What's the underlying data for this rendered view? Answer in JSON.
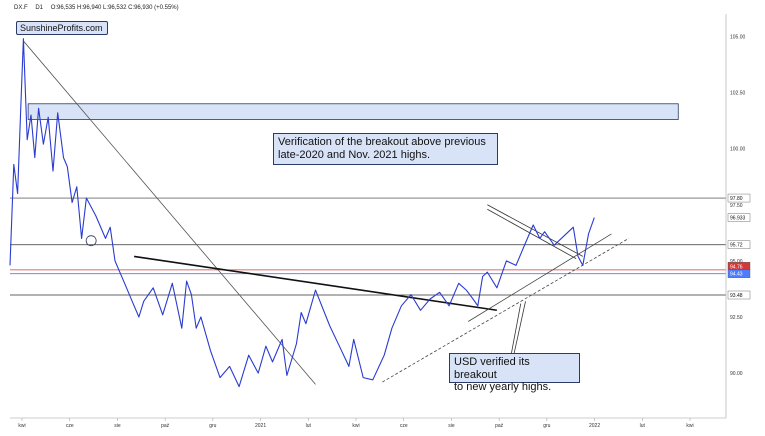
{
  "header": {
    "symbol": "DX.F",
    "timeframe": "D1",
    "ohlc": "O:96,535  H:96,940  L:96,532  C:96,930  (+0.55%)"
  },
  "watermark": "SunshineProfits.com",
  "annotations": {
    "breakout": "Verification of the breakout above previous late-2020 and Nov. 2021 highs.",
    "breakout_line1": "Verification of the breakout above previous",
    "breakout_line2": "late-2020 and Nov. 2021 highs.",
    "usd": "USD verified its breakout to new yearly highs.",
    "usd_line1": "USD verified its breakout",
    "usd_line2": "to new yearly highs."
  },
  "colors": {
    "price": "#2a3cd0",
    "callout_fill": "#d9e3f7",
    "callout_border": "#2b3a66",
    "red_line": "#d23a3a",
    "blue_line": "#4d7cff",
    "level_line": "#333333",
    "trend_line": "#555555"
  },
  "chart_data": {
    "type": "line",
    "ylim": [
      88.0,
      106.0
    ],
    "y_ticks": [
      "105.00",
      "102.50",
      "100.00",
      "97.50",
      "95.00",
      "92.50",
      "90.00"
    ],
    "price_badges": [
      "97.80",
      "96.933",
      "95.72",
      "94.76",
      "94.43",
      "93.48"
    ],
    "x_labels": [
      "kwi",
      "cze",
      "sie",
      "paź",
      "gru",
      "2021",
      "lut",
      "kwi",
      "cze",
      "sie",
      "paź",
      "gru",
      "2022",
      "lut",
      "kwi"
    ],
    "horizontal_levels": [
      97.8,
      95.72,
      93.48
    ],
    "red_level": 94.6,
    "blue_level": 94.43,
    "resistance_zone": [
      101.3,
      102.0
    ],
    "series": [
      {
        "x": [
          0,
          4,
          8,
          11,
          14,
          18,
          22,
          26,
          30,
          35,
          40,
          45,
          50,
          56,
          60,
          65,
          70,
          75,
          80,
          90,
          100,
          105,
          110,
          120,
          130,
          135,
          140,
          150,
          160,
          170,
          180,
          185,
          190,
          195,
          200,
          210,
          220,
          230,
          240,
          250,
          260,
          268,
          275,
          285,
          290,
          300,
          305,
          310,
          320,
          335,
          345,
          355,
          360,
          370,
          380,
          392,
          400,
          410,
          420,
          430,
          440,
          450,
          460,
          470,
          478,
          485,
          490,
          495,
          500,
          510,
          520,
          530,
          540,
          548,
          555,
          560,
          570,
          580,
          590,
          595,
          600,
          606,
          612
        ],
        "values": [
          94.8,
          99.3,
          98.0,
          101.5,
          104.9,
          100.4,
          101.5,
          99.6,
          101.8,
          100.2,
          101.4,
          99.0,
          101.6,
          99.6,
          99.2,
          97.6,
          98.3,
          96.0,
          97.8,
          97.0,
          96.0,
          96.5,
          95.0,
          94.0,
          93.0,
          92.5,
          93.2,
          93.8,
          92.6,
          94.0,
          92.0,
          94.1,
          93.5,
          92.0,
          92.5,
          91.0,
          89.8,
          90.3,
          89.4,
          90.8,
          90.0,
          91.2,
          90.5,
          91.5,
          89.9,
          91.3,
          92.7,
          92.2,
          93.7,
          92.1,
          91.2,
          90.3,
          91.5,
          89.8,
          89.7,
          90.8,
          92.0,
          93.0,
          93.5,
          92.8,
          93.3,
          93.6,
          93.0,
          94.0,
          93.7,
          93.3,
          93.0,
          94.3,
          94.5,
          93.8,
          95.0,
          94.8,
          95.8,
          96.6,
          96.0,
          96.3,
          95.7,
          96.1,
          96.5,
          95.2,
          94.8,
          96.2,
          96.93
        ]
      }
    ]
  }
}
